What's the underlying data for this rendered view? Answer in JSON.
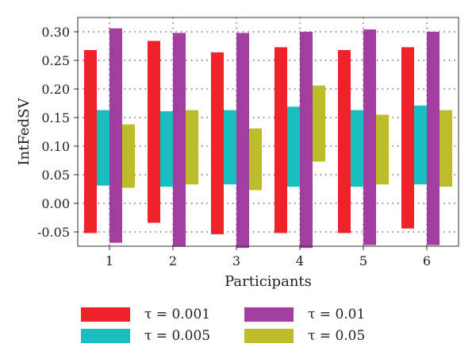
{
  "chart_data": {
    "type": "bar",
    "xlabel": "Participants",
    "ylabel": "IntFedSV",
    "categories": [
      "1",
      "2",
      "3",
      "4",
      "5",
      "6"
    ],
    "ylim": [
      -0.075,
      0.325
    ],
    "yticks": [
      -0.05,
      0.0,
      0.05,
      0.1,
      0.15,
      0.2,
      0.25,
      0.3
    ],
    "ytick_labels": [
      "-0.05",
      "0.00",
      "0.05",
      "0.10",
      "0.15",
      "0.20",
      "0.25",
      "0.30"
    ],
    "grid": true,
    "legend_position": "bottom",
    "series": [
      {
        "name": "τ = 0.001",
        "color": "#ee2228",
        "ranges": [
          [
            -0.052,
            0.268
          ],
          [
            -0.034,
            0.284
          ],
          [
            -0.054,
            0.264
          ],
          [
            -0.052,
            0.273
          ],
          [
            -0.052,
            0.268
          ],
          [
            -0.044,
            0.273
          ]
        ]
      },
      {
        "name": "τ = 0.005",
        "color": "#19bfbf",
        "ranges": [
          [
            0.031,
            0.163
          ],
          [
            0.029,
            0.161
          ],
          [
            0.033,
            0.163
          ],
          [
            0.029,
            0.169
          ],
          [
            0.029,
            0.163
          ],
          [
            0.033,
            0.171
          ]
        ]
      },
      {
        "name": "τ = 0.01",
        "color": "#a23ea0",
        "ranges": [
          [
            -0.069,
            0.306
          ],
          [
            -0.076,
            0.298
          ],
          [
            -0.078,
            0.298
          ],
          [
            -0.078,
            0.3
          ],
          [
            -0.073,
            0.304
          ],
          [
            -0.073,
            0.3
          ]
        ]
      },
      {
        "name": "τ = 0.05",
        "color": "#bdbd2a",
        "ranges": [
          [
            0.027,
            0.138
          ],
          [
            0.033,
            0.163
          ],
          [
            0.023,
            0.131
          ],
          [
            0.073,
            0.206
          ],
          [
            0.033,
            0.155
          ],
          [
            0.029,
            0.163
          ]
        ]
      }
    ]
  }
}
